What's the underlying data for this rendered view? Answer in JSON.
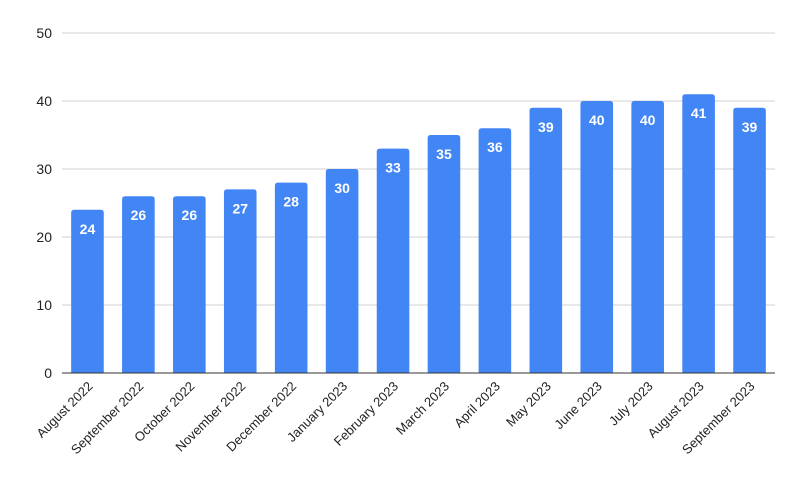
{
  "chart_data": {
    "type": "bar",
    "title": "",
    "xlabel": "",
    "ylabel": "",
    "categories": [
      "August 2022",
      "September 2022",
      "October 2022",
      "November 2022",
      "December 2022",
      "January 2023",
      "February 2023",
      "March 2023",
      "April 2023",
      "May 2023",
      "June 2023",
      "July 2023",
      "August 2023",
      "September 2023"
    ],
    "values": [
      24,
      26,
      26,
      27,
      28,
      30,
      33,
      35,
      36,
      39,
      40,
      40,
      41,
      39
    ],
    "ylim": [
      0,
      50
    ],
    "yticks": [
      0,
      10,
      20,
      30,
      40,
      50
    ],
    "grid": true,
    "bar_color": "#4285F4",
    "data_labels": true
  }
}
